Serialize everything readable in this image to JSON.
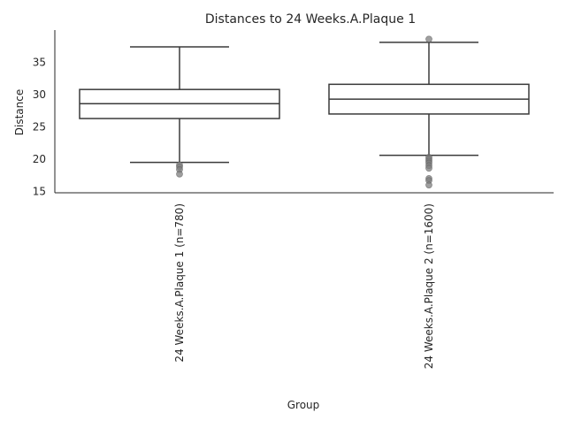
{
  "chart_data": {
    "type": "box",
    "title": "Distances to 24 Weeks.A.Plaque 1",
    "xlabel": "Group",
    "ylabel": "Distance",
    "ylim": [
      14.8,
      40.0
    ],
    "yticks": [
      15,
      20,
      25,
      30,
      35
    ],
    "grid": false,
    "legend": "none",
    "groups": [
      {
        "label": "24 Weeks.A.Plaque 1 (n=780)",
        "whisker_low": 19.5,
        "q1": 26.3,
        "median": 28.6,
        "q3": 30.8,
        "whisker_high": 37.4,
        "outliers": [
          19.1,
          18.8,
          18.4,
          17.7
        ]
      },
      {
        "label": "24 Weeks.A.Plaque 2 (n=1600)",
        "whisker_low": 20.6,
        "q1": 27.0,
        "median": 29.3,
        "q3": 31.6,
        "whisker_high": 38.1,
        "outliers": [
          38.6,
          20.3,
          20.0,
          19.7,
          19.4,
          19.0,
          18.6,
          17.0,
          16.7,
          16.0
        ]
      }
    ],
    "colors": {
      "box_line": "#3a3a3a",
      "outlier": "#7f7f7f",
      "axis": "#262626",
      "text": "#262626"
    }
  }
}
